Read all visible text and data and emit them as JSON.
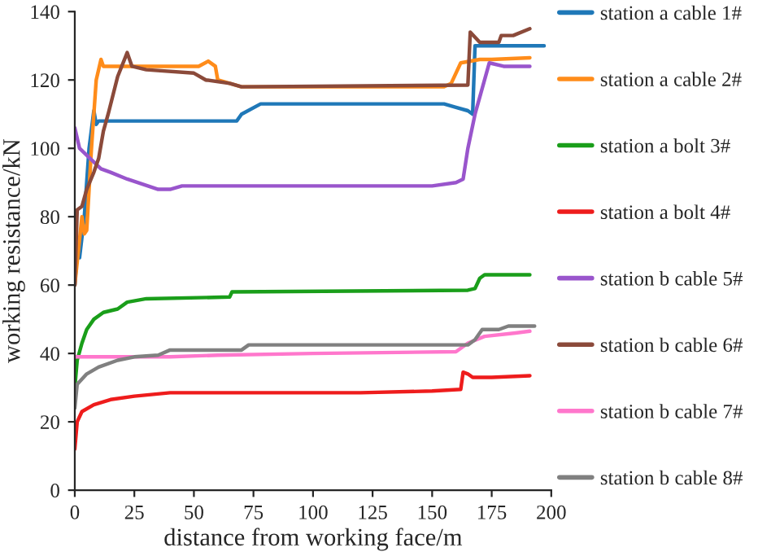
{
  "chart_data": {
    "type": "line",
    "xlabel": "distance from working face/m",
    "ylabel": "working resistance/kN",
    "xlim": [
      0,
      200
    ],
    "xticks": [
      0,
      25,
      50,
      75,
      100,
      125,
      150,
      175,
      200
    ],
    "ylim": [
      0,
      140
    ],
    "yticks": [
      0,
      20,
      40,
      60,
      80,
      100,
      120,
      140
    ],
    "grid": false,
    "legend": "right",
    "marker": "none",
    "line_style": "solid",
    "series": [
      {
        "name": "station a cable 1#",
        "color": "#1f78b8",
        "x": [
          0,
          1,
          2,
          4,
          6,
          8,
          9,
          10,
          68,
          70,
          78,
          155,
          160,
          165,
          167,
          168,
          197
        ],
        "values": [
          60,
          70,
          68,
          80,
          100,
          111,
          107,
          108,
          108,
          110,
          113,
          113,
          112,
          111,
          110,
          130,
          130
        ]
      },
      {
        "name": "station a cable 2#",
        "color": "#ff8c1a",
        "x": [
          0,
          3,
          4,
          5,
          7,
          9,
          11,
          12,
          52,
          56,
          59,
          60,
          70,
          155,
          158,
          162,
          170,
          175,
          191
        ],
        "values": [
          60,
          80,
          75,
          76,
          100,
          120,
          126,
          124,
          124,
          125.5,
          124,
          120,
          118,
          118,
          119,
          125,
          126,
          126,
          126.5
        ]
      },
      {
        "name": "station a bolt 3#",
        "color": "#1a9e1a",
        "x": [
          0,
          1,
          3,
          5,
          8,
          12,
          18,
          22,
          30,
          65,
          66,
          165,
          168,
          170,
          172,
          191
        ],
        "values": [
          30,
          38,
          43,
          47,
          50,
          52,
          53,
          55,
          56,
          56.5,
          58,
          58.5,
          59,
          62,
          63,
          63
        ]
      },
      {
        "name": "station a bolt 4#",
        "color": "#ee1c1c",
        "x": [
          0,
          1,
          3,
          8,
          15,
          25,
          40,
          120,
          150,
          162,
          163,
          165,
          167,
          175,
          191
        ],
        "values": [
          12,
          20,
          23,
          25,
          26.5,
          27.5,
          28.5,
          28.5,
          29,
          29.5,
          34.5,
          34,
          33,
          33,
          33.5
        ]
      },
      {
        "name": "station b cable 5#",
        "color": "#9955cc",
        "x": [
          0,
          2,
          5,
          11,
          15,
          22,
          35,
          40,
          45,
          150,
          160,
          163,
          165,
          168,
          174,
          180,
          191
        ],
        "values": [
          106,
          100,
          98,
          94,
          93,
          91,
          88,
          88,
          89,
          89,
          90,
          91,
          100,
          110,
          125,
          124,
          124
        ]
      },
      {
        "name": "station b cable 6#",
        "color": "#8b4a3a",
        "x": [
          0,
          1,
          3,
          5,
          8,
          10,
          12,
          14,
          18,
          22,
          24,
          30,
          50,
          55,
          65,
          70,
          165,
          166,
          170,
          178,
          179,
          184,
          191
        ],
        "values": [
          60,
          82,
          83,
          88,
          93,
          97,
          105,
          110,
          121,
          128,
          124,
          123,
          122,
          120,
          119,
          118,
          118.5,
          134,
          131,
          131,
          133,
          133,
          135
        ]
      },
      {
        "name": "station b cable 7#",
        "color": "#ff77cc",
        "x": [
          0,
          40,
          60,
          100,
          160,
          165,
          172,
          185,
          191
        ],
        "values": [
          39,
          39,
          39.5,
          40,
          40.5,
          43,
          45,
          46,
          46.5
        ]
      },
      {
        "name": "station b cable 8#",
        "color": "#808080",
        "x": [
          0,
          1,
          5,
          10,
          18,
          25,
          35,
          40,
          70,
          73,
          165,
          168,
          171,
          178,
          182,
          193
        ],
        "values": [
          24,
          31,
          34,
          36,
          38,
          39,
          39.5,
          41,
          41,
          42.5,
          42.5,
          44,
          47,
          47,
          48,
          48
        ]
      }
    ]
  }
}
